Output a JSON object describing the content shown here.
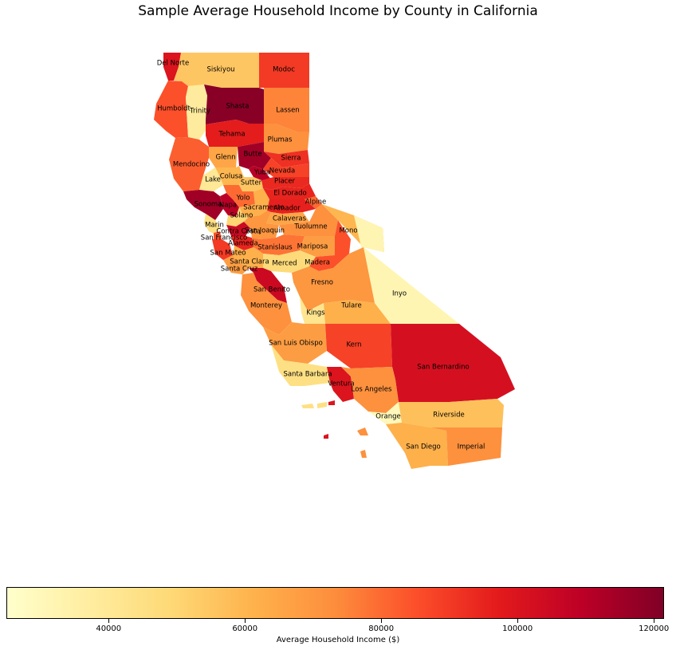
{
  "title": "Sample Average Household Income by County in California",
  "colorbar": {
    "label": "Average Household Income ($)",
    "min": 25000,
    "max": 121500,
    "ticks": [
      {
        "value": 40000,
        "label": "40000"
      },
      {
        "value": 60000,
        "label": "60000"
      },
      {
        "value": 80000,
        "label": "80000"
      },
      {
        "value": 100000,
        "label": "100000"
      },
      {
        "value": 120000,
        "label": "120000"
      }
    ],
    "colormap": [
      "#ffffcc",
      "#ffeda0",
      "#fed976",
      "#feb24c",
      "#fd8d3c",
      "#fc4e2a",
      "#e31a1c",
      "#bd0026",
      "#800026"
    ]
  },
  "counties": [
    {
      "name": "Del Norte",
      "value": 100000
    },
    {
      "name": "Siskiyou",
      "value": 55000
    },
    {
      "name": "Modoc",
      "value": 90000
    },
    {
      "name": "Humboldt",
      "value": 85000
    },
    {
      "name": "Trinity",
      "value": 38000
    },
    {
      "name": "Shasta",
      "value": 120000
    },
    {
      "name": "Lassen",
      "value": 75000
    },
    {
      "name": "Tehama",
      "value": 97000
    },
    {
      "name": "Plumas",
      "value": 72000
    },
    {
      "name": "Glenn",
      "value": 65000
    },
    {
      "name": "Butte",
      "value": 115000
    },
    {
      "name": "Sierra",
      "value": 92000
    },
    {
      "name": "Mendocino",
      "value": 82000
    },
    {
      "name": "Colusa",
      "value": 60000
    },
    {
      "name": "Yuba",
      "value": 110000
    },
    {
      "name": "Nevada",
      "value": 88000
    },
    {
      "name": "Lake",
      "value": 40000
    },
    {
      "name": "Sutter",
      "value": 55000
    },
    {
      "name": "Placer",
      "value": 94000
    },
    {
      "name": "El Dorado",
      "value": 95000
    },
    {
      "name": "Yolo",
      "value": 80000
    },
    {
      "name": "Alpine",
      "value": 80000
    },
    {
      "name": "Sonoma",
      "value": 115000
    },
    {
      "name": "Napa",
      "value": 110000
    },
    {
      "name": "Sacramento",
      "value": 62000
    },
    {
      "name": "Amador",
      "value": 96000
    },
    {
      "name": "Solano",
      "value": 50000
    },
    {
      "name": "Calaveras",
      "value": 65000
    },
    {
      "name": "Marin",
      "value": 45000
    },
    {
      "name": "Tuolumne",
      "value": 72000
    },
    {
      "name": "Mono",
      "value": 60000
    },
    {
      "name": "Contra Costa",
      "value": 105000
    },
    {
      "name": "San Joaquin",
      "value": 70000
    },
    {
      "name": "San Francisco",
      "value": 85000
    },
    {
      "name": "Alameda",
      "value": 95000
    },
    {
      "name": "Stanislaus",
      "value": 78000
    },
    {
      "name": "Mariposa",
      "value": 68000
    },
    {
      "name": "San Mateo",
      "value": 90000
    },
    {
      "name": "Santa Clara",
      "value": 62000
    },
    {
      "name": "Merced",
      "value": 48000
    },
    {
      "name": "Madera",
      "value": 85000
    },
    {
      "name": "Santa Cruz",
      "value": 68000
    },
    {
      "name": "Inyo",
      "value": 32000
    },
    {
      "name": "San Benito",
      "value": 105000
    },
    {
      "name": "Fresno",
      "value": 70000
    },
    {
      "name": "Monterey",
      "value": 72000
    },
    {
      "name": "Kings",
      "value": 42000
    },
    {
      "name": "Tulare",
      "value": 62000
    },
    {
      "name": "San Luis Obispo",
      "value": 68000
    },
    {
      "name": "Kern",
      "value": 88000
    },
    {
      "name": "San Bernardino",
      "value": 102000
    },
    {
      "name": "Santa Barbara",
      "value": 45000
    },
    {
      "name": "Ventura",
      "value": 100000
    },
    {
      "name": "Los Angeles",
      "value": 72000
    },
    {
      "name": "Orange",
      "value": 30000
    },
    {
      "name": "Riverside",
      "value": 57000
    },
    {
      "name": "San Diego",
      "value": 62000
    },
    {
      "name": "Imperial",
      "value": 72000
    }
  ]
}
